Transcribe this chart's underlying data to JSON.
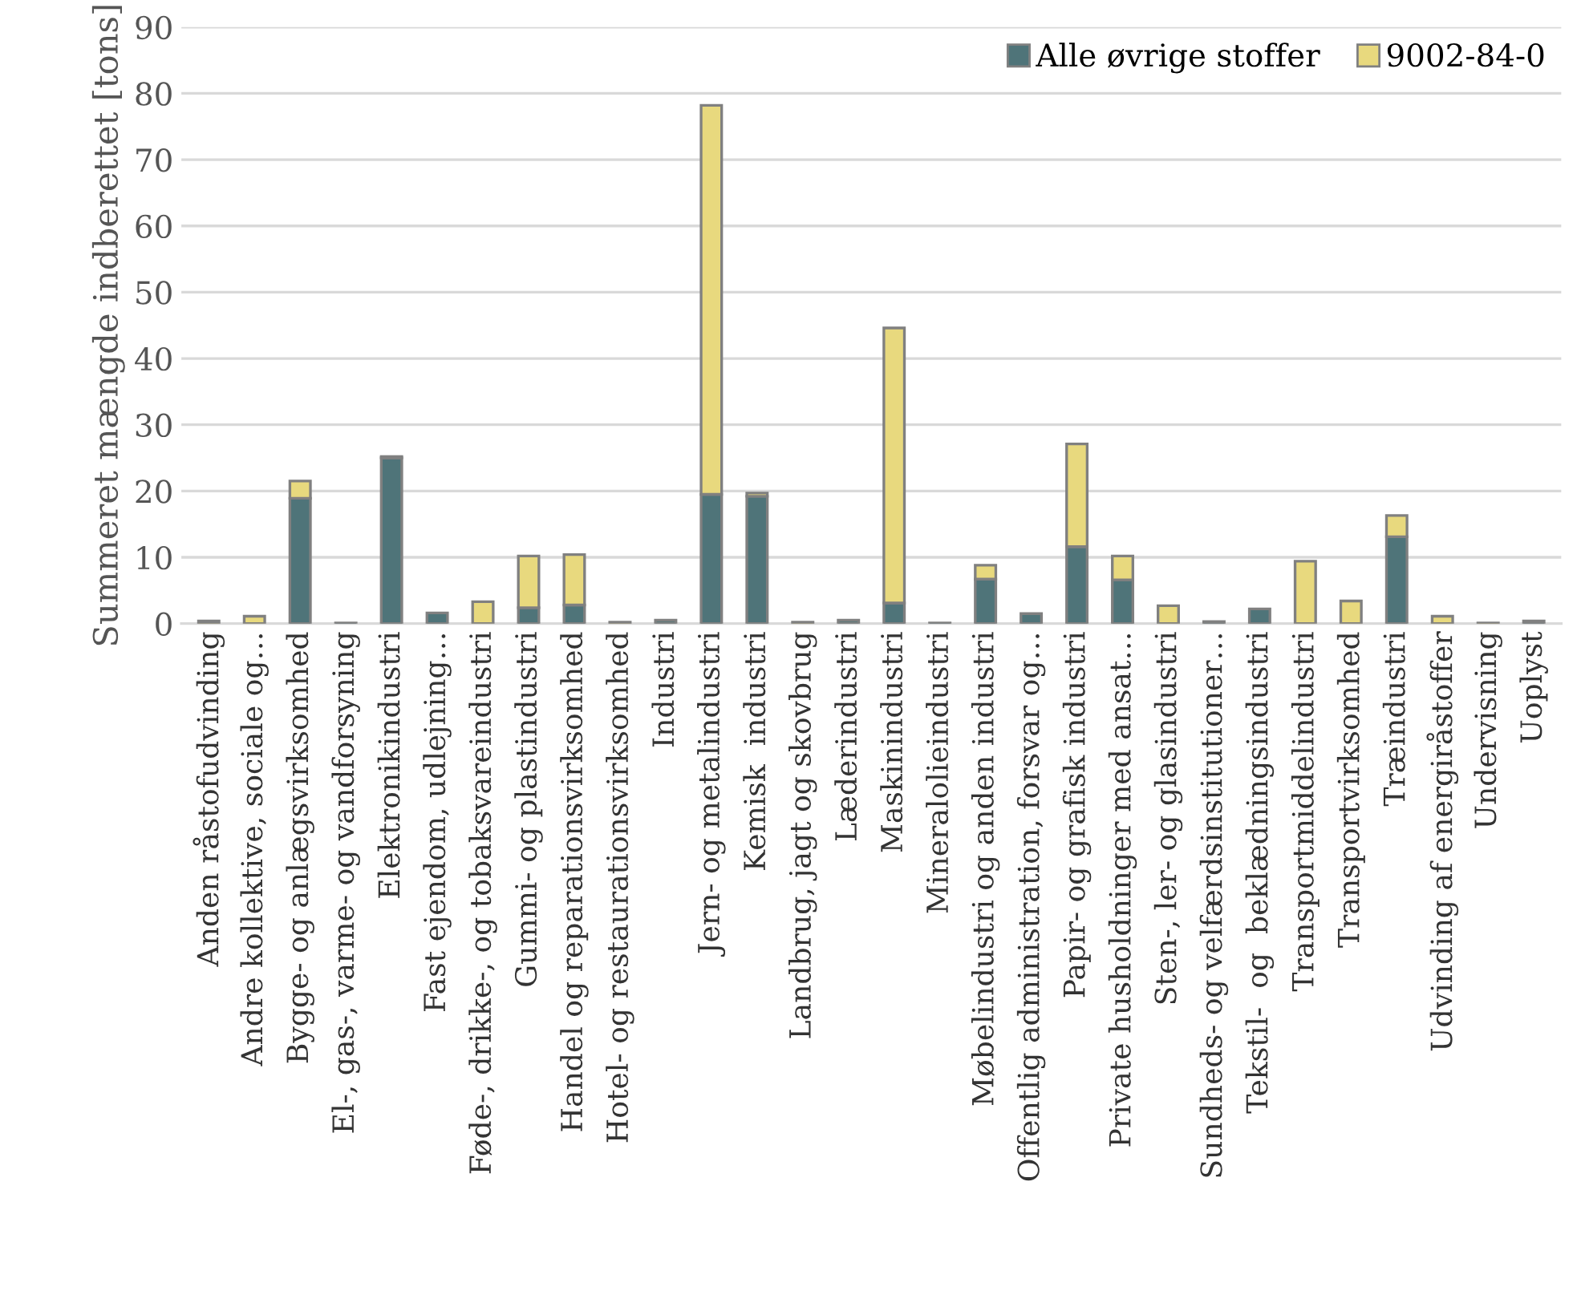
{
  "chart_data": {
    "type": "bar",
    "stacked": true,
    "ylabel": "Summeret mængde indberettet [tons]",
    "categories": [
      "Anden råstofudvinding",
      "Andre kollektive, sociale og…",
      "Bygge- og anlægsvirksomhed",
      "El-, gas-, varme- og vandforsyning",
      "Elektronikindustri",
      "Fast ejendom, udlejning…",
      "Føde-, drikke-, og tobaksvareindustri",
      "Gummi- og plastindustri",
      "Handel og reparationsvirksomhed",
      "Hotel- og restaurationsvirksomhed",
      "Industri",
      "Jern- og metalindustri",
      "Kemisk  industri",
      "Landbrug, jagt og skovbrug",
      "Læderindustri",
      "Maskinindustri",
      "Mineralolieindustri",
      "Møbelindustri og anden industri",
      "Offentlig administration, forsvar og…",
      "Papir- og grafisk industri",
      "Private husholdninger med ansat…",
      "Sten-, ler- og glasindustri",
      "Sundheds- og velfærdsinstitutioner…",
      "Tekstil-  og  beklædningsindustri",
      "Transportmiddelindustri",
      "Transportvirksomhed",
      "Træindustri",
      "Udvinding af energiråstoffer",
      "Undervisning",
      "Uoplyst"
    ],
    "series": [
      {
        "name": "Alle øvrige stoffer",
        "color": "#4f7479",
        "values": [
          null,
          0,
          18.9,
          0.1,
          25.0,
          1.6,
          0,
          2.4,
          2.8,
          0,
          0.5,
          19.5,
          19.2,
          0,
          0.5,
          3.1,
          0.1,
          6.7,
          1.5,
          11.6,
          6.6,
          0,
          0.3,
          2.2,
          0,
          0,
          13.1,
          0,
          0,
          0.4
        ]
      },
      {
        "name": "9002-84-0",
        "color": "#e8d97e",
        "values": [
          0.4,
          1.1,
          2.6,
          0,
          0.2,
          0,
          3.3,
          7.8,
          7.6,
          0.2,
          0,
          58.7,
          0.5,
          0.2,
          0,
          41.5,
          0,
          2.1,
          0,
          15.5,
          3.6,
          2.7,
          0,
          0,
          9.4,
          3.4,
          3.2,
          1.1,
          0.1,
          0
        ]
      }
    ],
    "ylim": [
      0,
      90
    ],
    "yticks": [
      0,
      10,
      20,
      30,
      40,
      50,
      60,
      70,
      80,
      90
    ],
    "grid": "y",
    "legend": "top right"
  }
}
